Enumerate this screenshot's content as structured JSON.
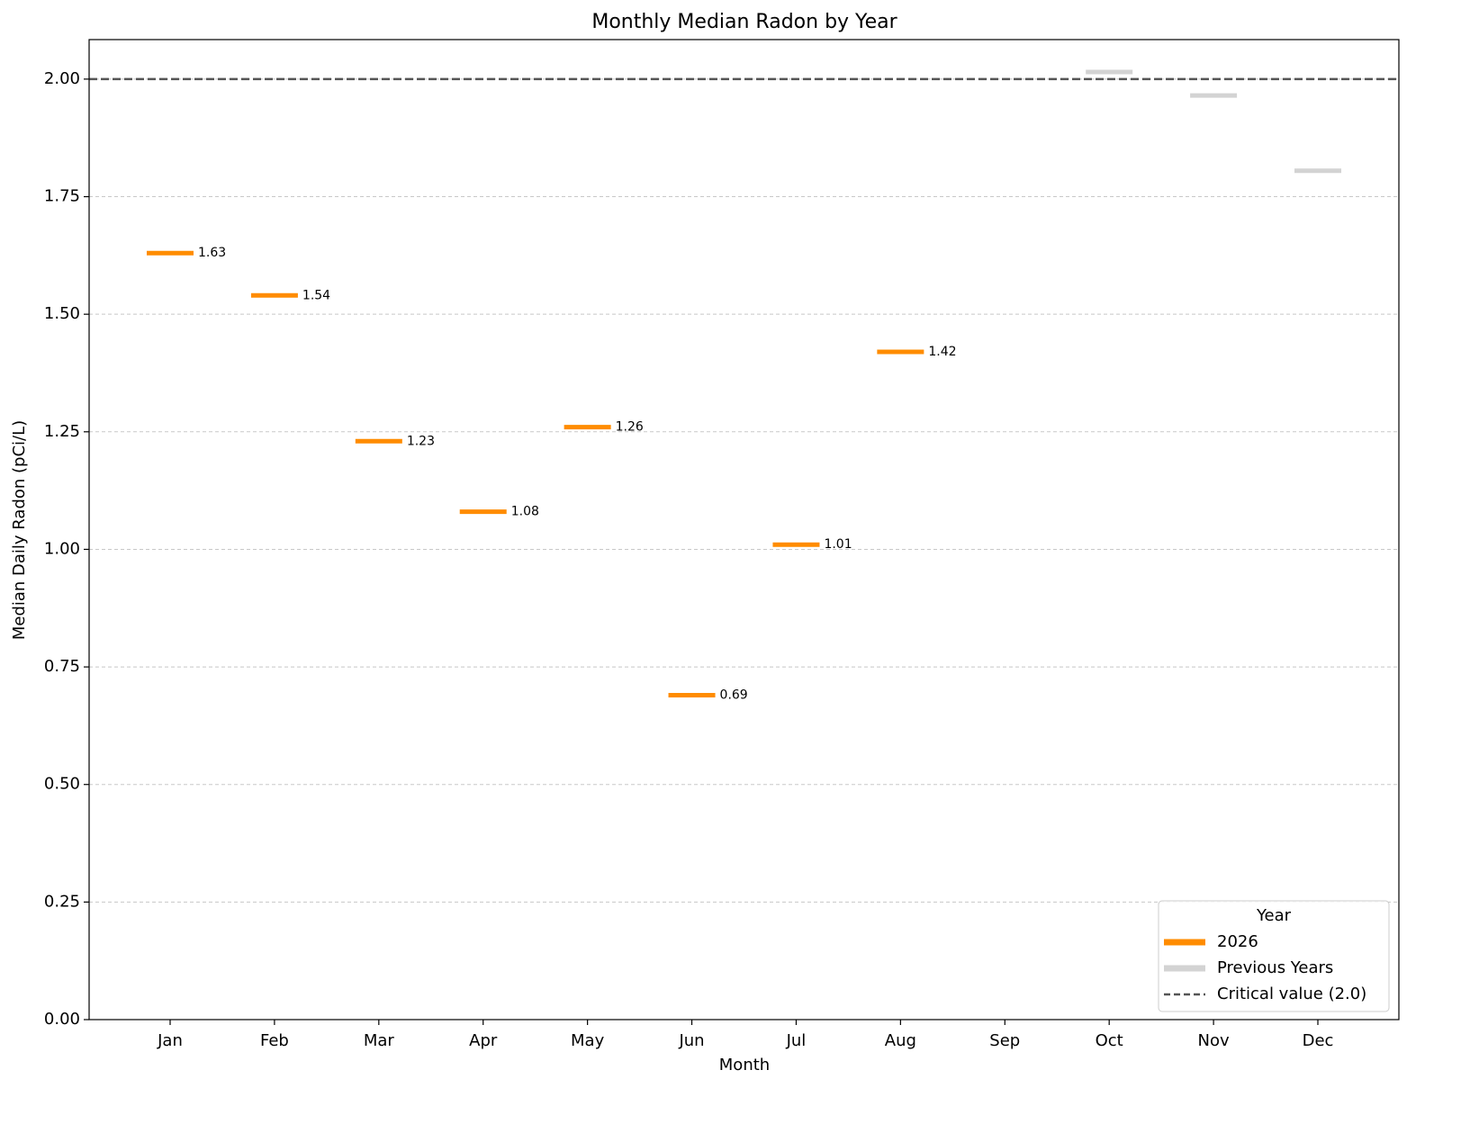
{
  "chart_data": {
    "type": "segment",
    "title": "Monthly Median Radon by Year",
    "x_label": "Month",
    "y_label": "Median Daily Radon (pCi/L)",
    "categories": [
      "Jan",
      "Feb",
      "Mar",
      "Apr",
      "May",
      "Jun",
      "Jul",
      "Aug",
      "Sep",
      "Oct",
      "Nov",
      "Dec"
    ],
    "series": [
      {
        "name": "2026",
        "color": "#ff8c00",
        "show_labels": true,
        "values": [
          1.63,
          1.54,
          1.23,
          1.08,
          1.26,
          0.69,
          1.01,
          1.42,
          null,
          null,
          null,
          null
        ]
      },
      {
        "name": "Previous Years",
        "color": "#d3d3d3",
        "show_labels": false,
        "values": [
          null,
          null,
          null,
          null,
          null,
          null,
          null,
          null,
          null,
          2.015,
          1.965,
          1.805
        ]
      }
    ],
    "reference_line": {
      "value": 2.0,
      "label": "Critical value (2.0)",
      "color": "#555555"
    },
    "ylim": [
      0,
      2.084
    ],
    "yticks": [
      {
        "value": 0,
        "label": "0.00"
      },
      {
        "value": 0.25,
        "label": "0.25"
      },
      {
        "value": 0.5,
        "label": "0.50"
      },
      {
        "value": 0.75,
        "label": "0.75"
      },
      {
        "value": 1,
        "label": "1.00"
      },
      {
        "value": 1.25,
        "label": "1.25"
      },
      {
        "value": 1.5,
        "label": "1.50"
      },
      {
        "value": 1.75,
        "label": "1.75"
      },
      {
        "value": 2,
        "label": "2.00"
      }
    ],
    "grid": true,
    "legend_title": "Year",
    "legend_position": "lower right"
  }
}
